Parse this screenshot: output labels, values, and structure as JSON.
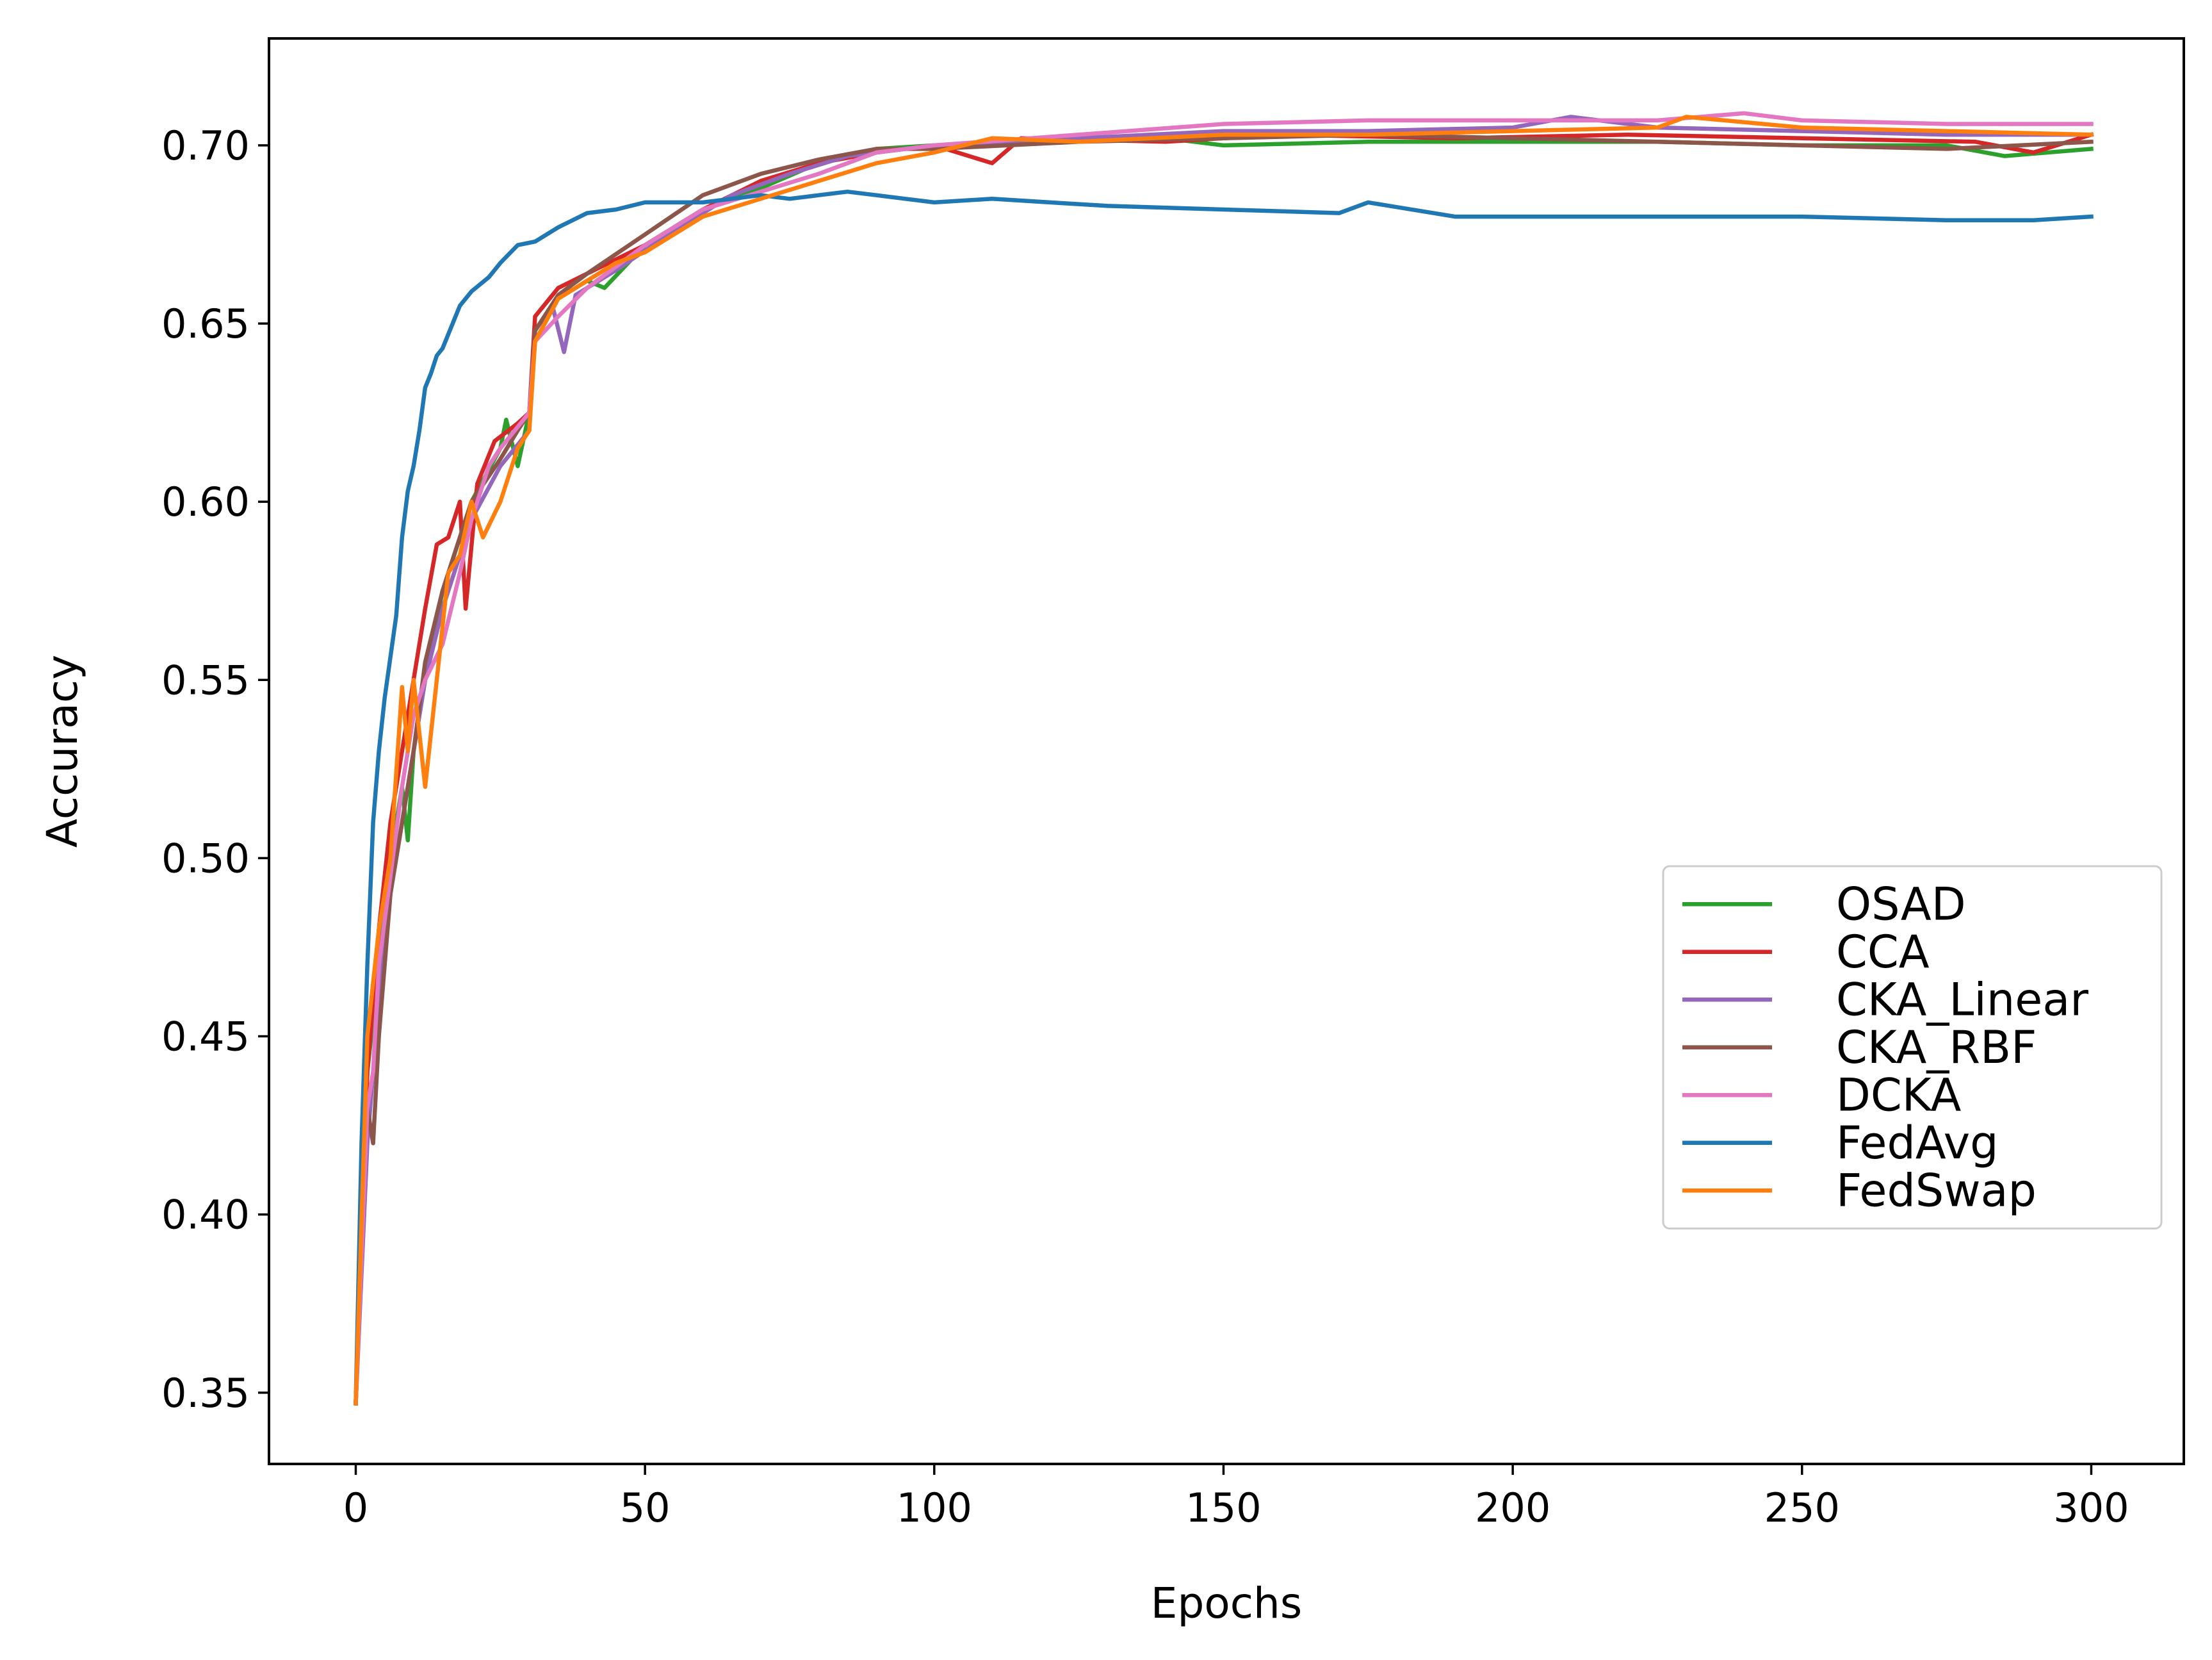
{
  "chart_data": {
    "type": "line",
    "xlabel": "Epochs",
    "ylabel": "Accuracy",
    "xlim": [
      -15,
      316
    ],
    "ylim": [
      0.33,
      0.73
    ],
    "x_ticks": [
      0,
      50,
      100,
      150,
      200,
      250,
      300
    ],
    "x_tick_labels": [
      "0",
      "50",
      "100",
      "150",
      "200",
      "250",
      "300"
    ],
    "y_ticks": [
      0.35,
      0.4,
      0.45,
      0.5,
      0.55,
      0.6,
      0.65,
      0.7
    ],
    "y_tick_labels": [
      "0.35",
      "0.40",
      "0.45",
      "0.50",
      "0.55",
      "0.60",
      "0.65",
      "0.70"
    ],
    "grid": false,
    "legend_position": "lower-right",
    "series": [
      {
        "name": "OSAD",
        "color": "#2ca02c",
        "points": [
          [
            0,
            0.347
          ],
          [
            2,
            0.44
          ],
          [
            4,
            0.47
          ],
          [
            6,
            0.5
          ],
          [
            8,
            0.52
          ],
          [
            9,
            0.505
          ],
          [
            10,
            0.53
          ],
          [
            12,
            0.55
          ],
          [
            15,
            0.575
          ],
          [
            18,
            0.59
          ],
          [
            20,
            0.6
          ],
          [
            25,
            0.615
          ],
          [
            26,
            0.623
          ],
          [
            28,
            0.61
          ],
          [
            30,
            0.625
          ],
          [
            31,
            0.645
          ],
          [
            35,
            0.657
          ],
          [
            40,
            0.662
          ],
          [
            43,
            0.66
          ],
          [
            50,
            0.672
          ],
          [
            60,
            0.682
          ],
          [
            70,
            0.688
          ],
          [
            80,
            0.695
          ],
          [
            90,
            0.699
          ],
          [
            100,
            0.7
          ],
          [
            120,
            0.701
          ],
          [
            140,
            0.702
          ],
          [
            150,
            0.7
          ],
          [
            175,
            0.701
          ],
          [
            200,
            0.701
          ],
          [
            225,
            0.701
          ],
          [
            250,
            0.7
          ],
          [
            275,
            0.7
          ],
          [
            285,
            0.697
          ],
          [
            300,
            0.699
          ]
        ]
      },
      {
        "name": "CCA",
        "color": "#d62728",
        "points": [
          [
            0,
            0.347
          ],
          [
            2,
            0.44
          ],
          [
            4,
            0.48
          ],
          [
            6,
            0.51
          ],
          [
            8,
            0.53
          ],
          [
            10,
            0.55
          ],
          [
            12,
            0.57
          ],
          [
            14,
            0.588
          ],
          [
            16,
            0.59
          ],
          [
            18,
            0.6
          ],
          [
            19,
            0.57
          ],
          [
            21,
            0.605
          ],
          [
            24,
            0.617
          ],
          [
            28,
            0.622
          ],
          [
            30,
            0.625
          ],
          [
            31,
            0.652
          ],
          [
            35,
            0.66
          ],
          [
            40,
            0.664
          ],
          [
            50,
            0.672
          ],
          [
            60,
            0.682
          ],
          [
            70,
            0.69
          ],
          [
            80,
            0.695
          ],
          [
            90,
            0.698
          ],
          [
            100,
            0.7
          ],
          [
            110,
            0.695
          ],
          [
            115,
            0.702
          ],
          [
            140,
            0.701
          ],
          [
            160,
            0.703
          ],
          [
            190,
            0.702
          ],
          [
            220,
            0.703
          ],
          [
            250,
            0.702
          ],
          [
            280,
            0.701
          ],
          [
            290,
            0.698
          ],
          [
            300,
            0.703
          ]
        ]
      },
      {
        "name": "CKA_Linear",
        "color": "#9467bd",
        "points": [
          [
            0,
            0.347
          ],
          [
            2,
            0.42
          ],
          [
            4,
            0.46
          ],
          [
            6,
            0.49
          ],
          [
            8,
            0.51
          ],
          [
            10,
            0.53
          ],
          [
            12,
            0.55
          ],
          [
            15,
            0.57
          ],
          [
            18,
            0.585
          ],
          [
            20,
            0.595
          ],
          [
            25,
            0.61
          ],
          [
            30,
            0.62
          ],
          [
            31,
            0.648
          ],
          [
            34,
            0.655
          ],
          [
            36,
            0.642
          ],
          [
            38,
            0.658
          ],
          [
            45,
            0.665
          ],
          [
            55,
            0.676
          ],
          [
            65,
            0.686
          ],
          [
            75,
            0.692
          ],
          [
            85,
            0.697
          ],
          [
            100,
            0.7
          ],
          [
            125,
            0.702
          ],
          [
            150,
            0.704
          ],
          [
            175,
            0.704
          ],
          [
            200,
            0.705
          ],
          [
            210,
            0.708
          ],
          [
            225,
            0.705
          ],
          [
            250,
            0.704
          ],
          [
            275,
            0.703
          ],
          [
            300,
            0.703
          ]
        ]
      },
      {
        "name": "CKA_RBF",
        "color": "#8c564b",
        "points": [
          [
            0,
            0.347
          ],
          [
            2,
            0.43
          ],
          [
            3,
            0.42
          ],
          [
            4,
            0.45
          ],
          [
            6,
            0.49
          ],
          [
            8,
            0.51
          ],
          [
            10,
            0.53
          ],
          [
            12,
            0.555
          ],
          [
            15,
            0.575
          ],
          [
            18,
            0.59
          ],
          [
            20,
            0.6
          ],
          [
            25,
            0.612
          ],
          [
            28,
            0.62
          ],
          [
            30,
            0.625
          ],
          [
            31,
            0.648
          ],
          [
            35,
            0.658
          ],
          [
            40,
            0.664
          ],
          [
            50,
            0.675
          ],
          [
            60,
            0.686
          ],
          [
            70,
            0.692
          ],
          [
            80,
            0.696
          ],
          [
            90,
            0.699
          ],
          [
            100,
            0.699
          ],
          [
            125,
            0.701
          ],
          [
            150,
            0.702
          ],
          [
            175,
            0.703
          ],
          [
            200,
            0.702
          ],
          [
            225,
            0.701
          ],
          [
            250,
            0.7
          ],
          [
            275,
            0.699
          ],
          [
            300,
            0.701
          ]
        ]
      },
      {
        "name": "DCKA",
        "color": "#e377c2",
        "points": [
          [
            0,
            0.347
          ],
          [
            2,
            0.43
          ],
          [
            3,
            0.44
          ],
          [
            4,
            0.47
          ],
          [
            6,
            0.495
          ],
          [
            8,
            0.52
          ],
          [
            10,
            0.54
          ],
          [
            12,
            0.55
          ],
          [
            15,
            0.56
          ],
          [
            18,
            0.58
          ],
          [
            20,
            0.595
          ],
          [
            23,
            0.61
          ],
          [
            25,
            0.615
          ],
          [
            30,
            0.625
          ],
          [
            31,
            0.645
          ],
          [
            35,
            0.652
          ],
          [
            40,
            0.66
          ],
          [
            50,
            0.672
          ],
          [
            60,
            0.682
          ],
          [
            70,
            0.687
          ],
          [
            80,
            0.692
          ],
          [
            90,
            0.698
          ],
          [
            100,
            0.7
          ],
          [
            125,
            0.703
          ],
          [
            150,
            0.706
          ],
          [
            175,
            0.707
          ],
          [
            200,
            0.707
          ],
          [
            225,
            0.707
          ],
          [
            240,
            0.709
          ],
          [
            250,
            0.707
          ],
          [
            275,
            0.706
          ],
          [
            300,
            0.706
          ]
        ]
      },
      {
        "name": "FedAvg",
        "color": "#1f77b4",
        "points": [
          [
            0,
            0.347
          ],
          [
            1,
            0.42
          ],
          [
            2,
            0.47
          ],
          [
            3,
            0.51
          ],
          [
            4,
            0.53
          ],
          [
            5,
            0.545
          ],
          [
            7,
            0.568
          ],
          [
            8,
            0.59
          ],
          [
            9,
            0.603
          ],
          [
            10,
            0.61
          ],
          [
            11,
            0.62
          ],
          [
            12,
            0.632
          ],
          [
            13,
            0.636
          ],
          [
            14,
            0.641
          ],
          [
            15,
            0.643
          ],
          [
            17,
            0.651
          ],
          [
            18,
            0.655
          ],
          [
            20,
            0.659
          ],
          [
            23,
            0.663
          ],
          [
            25,
            0.667
          ],
          [
            28,
            0.672
          ],
          [
            31,
            0.673
          ],
          [
            35,
            0.677
          ],
          [
            40,
            0.681
          ],
          [
            45,
            0.682
          ],
          [
            50,
            0.684
          ],
          [
            55,
            0.684
          ],
          [
            60,
            0.684
          ],
          [
            65,
            0.685
          ],
          [
            70,
            0.686
          ],
          [
            75,
            0.685
          ],
          [
            80,
            0.686
          ],
          [
            85,
            0.687
          ],
          [
            90,
            0.686
          ],
          [
            95,
            0.685
          ],
          [
            100,
            0.684
          ],
          [
            110,
            0.685
          ],
          [
            120,
            0.684
          ],
          [
            130,
            0.683
          ],
          [
            150,
            0.682
          ],
          [
            170,
            0.681
          ],
          [
            175,
            0.684
          ],
          [
            190,
            0.68
          ],
          [
            200,
            0.68
          ],
          [
            225,
            0.68
          ],
          [
            250,
            0.68
          ],
          [
            275,
            0.679
          ],
          [
            290,
            0.679
          ],
          [
            300,
            0.68
          ]
        ]
      },
      {
        "name": "FedSwap",
        "color": "#ff7f0e",
        "points": [
          [
            0,
            0.347
          ],
          [
            2,
            0.45
          ],
          [
            4,
            0.48
          ],
          [
            6,
            0.5
          ],
          [
            8,
            0.548
          ],
          [
            9,
            0.53
          ],
          [
            10,
            0.55
          ],
          [
            12,
            0.52
          ],
          [
            14,
            0.55
          ],
          [
            16,
            0.58
          ],
          [
            18,
            0.585
          ],
          [
            20,
            0.6
          ],
          [
            22,
            0.59
          ],
          [
            25,
            0.6
          ],
          [
            28,
            0.615
          ],
          [
            30,
            0.62
          ],
          [
            31,
            0.645
          ],
          [
            35,
            0.657
          ],
          [
            40,
            0.662
          ],
          [
            45,
            0.667
          ],
          [
            50,
            0.67
          ],
          [
            60,
            0.68
          ],
          [
            70,
            0.685
          ],
          [
            80,
            0.69
          ],
          [
            90,
            0.695
          ],
          [
            100,
            0.698
          ],
          [
            110,
            0.702
          ],
          [
            125,
            0.701
          ],
          [
            150,
            0.703
          ],
          [
            175,
            0.703
          ],
          [
            200,
            0.704
          ],
          [
            225,
            0.705
          ],
          [
            230,
            0.708
          ],
          [
            250,
            0.705
          ],
          [
            275,
            0.704
          ],
          [
            300,
            0.703
          ]
        ]
      }
    ]
  }
}
